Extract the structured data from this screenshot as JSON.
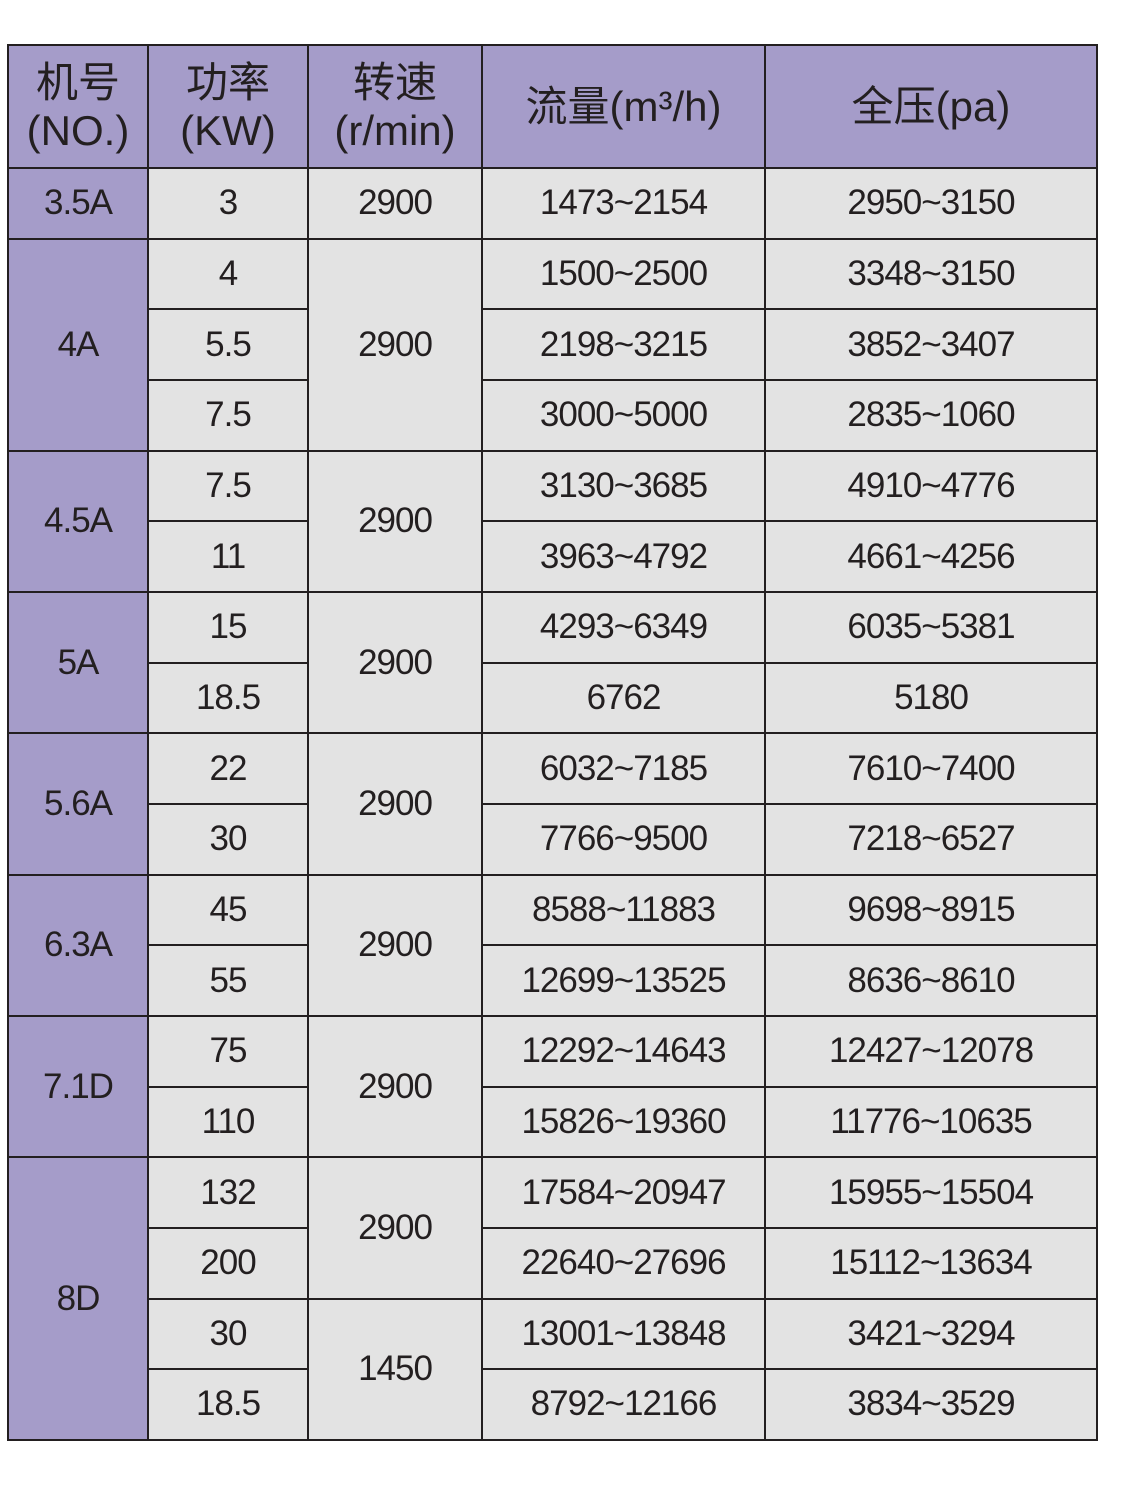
{
  "header": {
    "model": [
      "机号",
      "(NO.)"
    ],
    "power": [
      "功率",
      "(KW)"
    ],
    "speed": [
      "转速",
      "(r/min)"
    ],
    "flow": "流量(m³/h)",
    "pressure": "全压(pa)"
  },
  "colors": {
    "header_bg": "#a59cc9",
    "cell_bg": "#e3e3e3",
    "border": "#231f20"
  },
  "groups": [
    {
      "model": "3.5A",
      "speed_groups": [
        {
          "speed": "2900",
          "rows": [
            {
              "power": "3",
              "flow": "1473~2154",
              "pressure": "2950~3150"
            }
          ]
        }
      ]
    },
    {
      "model": "4A",
      "speed_groups": [
        {
          "speed": "2900",
          "rows": [
            {
              "power": "4",
              "flow": "1500~2500",
              "pressure": "3348~3150"
            },
            {
              "power": "5.5",
              "flow": "2198~3215",
              "pressure": "3852~3407"
            },
            {
              "power": "7.5",
              "flow": "3000~5000",
              "pressure": "2835~1060"
            }
          ]
        }
      ]
    },
    {
      "model": "4.5A",
      "speed_groups": [
        {
          "speed": "2900",
          "rows": [
            {
              "power": "7.5",
              "flow": "3130~3685",
              "pressure": "4910~4776"
            },
            {
              "power": "11",
              "flow": "3963~4792",
              "pressure": "4661~4256"
            }
          ]
        }
      ]
    },
    {
      "model": "5A",
      "speed_groups": [
        {
          "speed": "2900",
          "rows": [
            {
              "power": "15",
              "flow": "4293~6349",
              "pressure": "6035~5381"
            },
            {
              "power": "18.5",
              "flow": "6762",
              "pressure": "5180"
            }
          ]
        }
      ]
    },
    {
      "model": "5.6A",
      "speed_groups": [
        {
          "speed": "2900",
          "rows": [
            {
              "power": "22",
              "flow": "6032~7185",
              "pressure": "7610~7400"
            },
            {
              "power": "30",
              "flow": "7766~9500",
              "pressure": "7218~6527"
            }
          ]
        }
      ]
    },
    {
      "model": "6.3A",
      "speed_groups": [
        {
          "speed": "2900",
          "rows": [
            {
              "power": "45",
              "flow": "8588~11883",
              "pressure": "9698~8915"
            },
            {
              "power": "55",
              "flow": "12699~13525",
              "pressure": "8636~8610"
            }
          ]
        }
      ]
    },
    {
      "model": "7.1D",
      "speed_groups": [
        {
          "speed": "2900",
          "rows": [
            {
              "power": "75",
              "flow": "12292~14643",
              "pressure": "12427~12078"
            },
            {
              "power": "110",
              "flow": "15826~19360",
              "pressure": "11776~10635"
            }
          ]
        }
      ]
    },
    {
      "model": "8D",
      "speed_groups": [
        {
          "speed": "2900",
          "rows": [
            {
              "power": "132",
              "flow": "17584~20947",
              "pressure": "15955~15504"
            },
            {
              "power": "200",
              "flow": "22640~27696",
              "pressure": "15112~13634"
            }
          ]
        },
        {
          "speed": "1450",
          "rows": [
            {
              "power": "30",
              "flow": "13001~13848",
              "pressure": "3421~3294"
            },
            {
              "power": "18.5",
              "flow": "8792~12166",
              "pressure": "3834~3529"
            }
          ]
        }
      ]
    }
  ]
}
